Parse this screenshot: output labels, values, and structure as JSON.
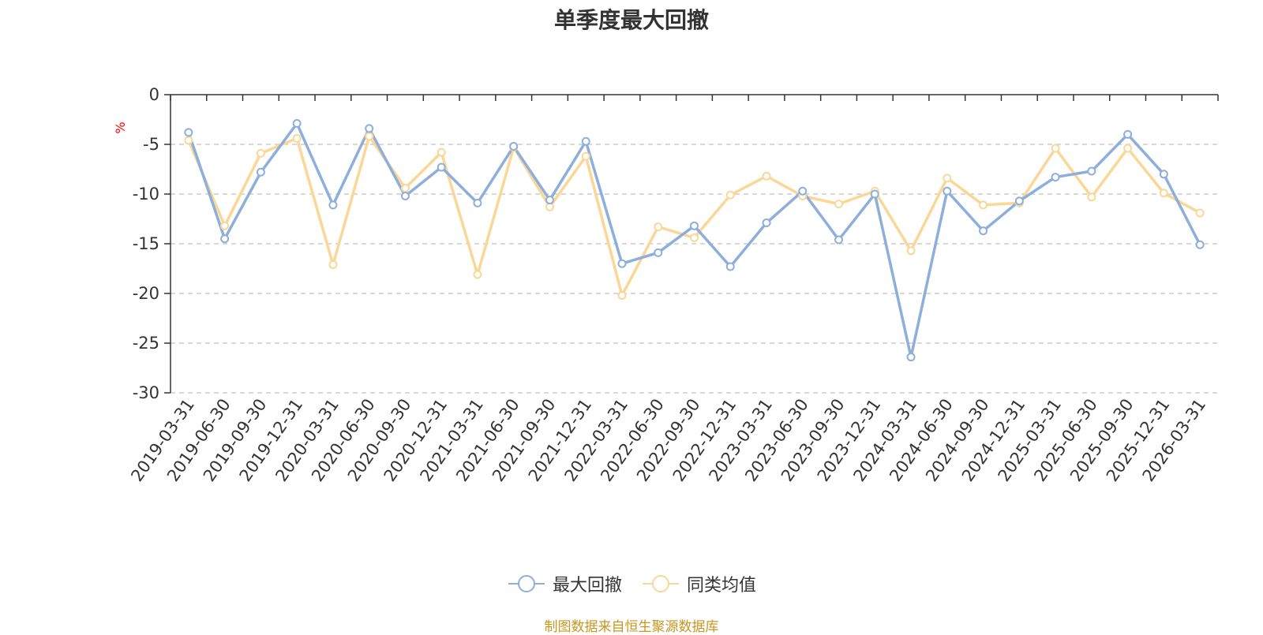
{
  "chart_data": {
    "type": "line",
    "title": "单季度最大回撤",
    "ylabel": "%",
    "ylim": [
      -30,
      0
    ],
    "yticks": [
      0,
      -5,
      -10,
      -15,
      -20,
      -25,
      -30
    ],
    "grid": true,
    "legend_position": "bottom",
    "categories": [
      "2019-03-31",
      "2019-06-30",
      "2019-09-30",
      "2019-12-31",
      "2020-03-31",
      "2020-06-30",
      "2020-09-30",
      "2020-12-31",
      "2021-03-31",
      "2021-06-30",
      "2021-09-30",
      "2021-12-31",
      "2022-03-31",
      "2022-06-30",
      "2022-09-30",
      "2022-12-31",
      "2023-03-31",
      "2023-06-30",
      "2023-09-30",
      "2023-12-31",
      "2024-03-31",
      "2024-06-30",
      "2024-09-30",
      "2024-12-31",
      "2025-03-31",
      "2025-06-30",
      "2025-09-30",
      "2025-12-31",
      "2026-03-31"
    ],
    "series": [
      {
        "name": "最大回撤",
        "color": "#8eaedb",
        "values": [
          -3.8,
          -14.5,
          -7.8,
          -2.9,
          -11.1,
          -3.4,
          -10.2,
          -7.3,
          -10.9,
          -5.2,
          -10.6,
          -4.7,
          -17.0,
          -15.9,
          -13.2,
          -17.3,
          -12.9,
          -9.7,
          -14.6,
          -10.0,
          -26.4,
          -9.7,
          -13.7,
          -10.7,
          -8.3,
          -7.7,
          -4.0,
          -8.0,
          -15.1
        ]
      },
      {
        "name": "同类均值",
        "color": "#fad797",
        "values": [
          -4.6,
          -13.2,
          -5.9,
          -4.4,
          -17.1,
          -4.2,
          -9.4,
          -5.8,
          -18.1,
          -5.3,
          -11.3,
          -6.2,
          -20.2,
          -13.3,
          -14.4,
          -10.1,
          -8.2,
          -10.2,
          -11.0,
          -9.7,
          -15.7,
          -8.4,
          -11.1,
          -10.9,
          -5.4,
          -10.3,
          -5.4,
          -9.9,
          -11.9
        ]
      }
    ]
  },
  "source_note": "制图数据来自恒生聚源数据库"
}
